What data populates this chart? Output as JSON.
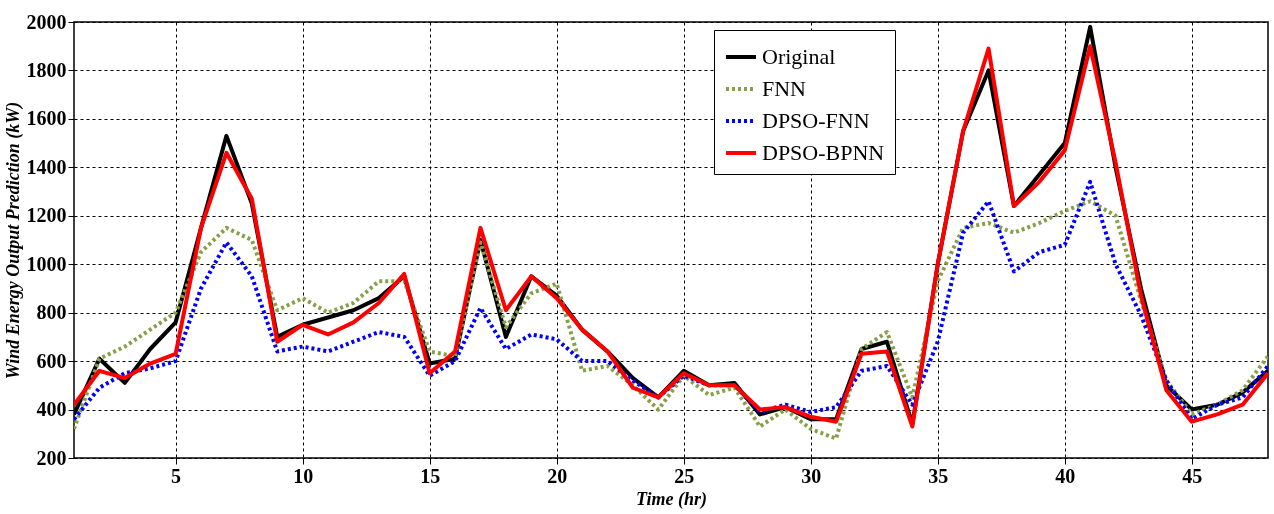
{
  "chart_data": {
    "type": "line",
    "xlabel": "Time (hr)",
    "ylabel": "Wind Energy Output Prediction (kW)",
    "x": [
      1,
      2,
      3,
      4,
      5,
      6,
      7,
      8,
      9,
      10,
      11,
      12,
      13,
      14,
      15,
      16,
      17,
      18,
      19,
      20,
      21,
      22,
      23,
      24,
      25,
      26,
      27,
      28,
      29,
      30,
      31,
      32,
      33,
      34,
      35,
      36,
      37,
      38,
      39,
      40,
      41,
      42,
      43,
      44,
      45,
      46,
      47,
      48
    ],
    "xlim": [
      1,
      48
    ],
    "xticks": [
      5,
      10,
      15,
      20,
      25,
      30,
      35,
      40,
      45
    ],
    "ylim": [
      200,
      2000
    ],
    "yticks": [
      200,
      400,
      600,
      800,
      1000,
      1200,
      1400,
      1600,
      1800,
      2000
    ],
    "grid": true,
    "legend": "top right",
    "marker": "none",
    "series": [
      {
        "name": "Original",
        "color": "#000000",
        "line_style": "solid",
        "values": [
          380,
          610,
          510,
          650,
          760,
          1150,
          1530,
          1250,
          700,
          750,
          780,
          810,
          860,
          950,
          590,
          610,
          1100,
          700,
          950,
          870,
          730,
          640,
          530,
          450,
          560,
          500,
          510,
          380,
          410,
          360,
          360,
          650,
          680,
          340,
          1000,
          1550,
          1800,
          1240,
          1370,
          1500,
          1980,
          1400,
          900,
          500,
          400,
          420,
          470,
          560
        ]
      },
      {
        "name": "FNN",
        "color": "#86a048",
        "line_style": "dotted",
        "values": [
          320,
          610,
          660,
          730,
          800,
          1050,
          1150,
          1100,
          810,
          860,
          800,
          840,
          930,
          930,
          640,
          620,
          1090,
          740,
          880,
          920,
          560,
          580,
          500,
          400,
          540,
          460,
          490,
          330,
          400,
          320,
          280,
          650,
          720,
          450,
          930,
          1150,
          1170,
          1130,
          1170,
          1220,
          1260,
          1200,
          850,
          520,
          380,
          420,
          480,
          620
        ]
      },
      {
        "name": "DPSO-FNN",
        "color": "#0000ff",
        "line_style": "dotted",
        "values": [
          360,
          490,
          550,
          570,
          600,
          900,
          1090,
          950,
          640,
          660,
          640,
          680,
          720,
          700,
          540,
          600,
          820,
          650,
          710,
          690,
          600,
          600,
          520,
          450,
          540,
          500,
          500,
          390,
          420,
          390,
          410,
          560,
          580,
          420,
          680,
          1130,
          1260,
          970,
          1050,
          1080,
          1340,
          1000,
          790,
          520,
          360,
          420,
          450,
          580
        ]
      },
      {
        "name": "DPSO-BPNN",
        "color": "#ff0000",
        "line_style": "solid",
        "values": [
          420,
          560,
          530,
          590,
          630,
          1150,
          1460,
          1270,
          680,
          750,
          710,
          760,
          840,
          960,
          550,
          640,
          1150,
          810,
          950,
          860,
          730,
          640,
          490,
          450,
          550,
          500,
          500,
          400,
          410,
          370,
          350,
          630,
          640,
          330,
          1000,
          1550,
          1890,
          1240,
          1340,
          1470,
          1900,
          1420,
          870,
          480,
          350,
          380,
          420,
          550
        ]
      }
    ]
  }
}
